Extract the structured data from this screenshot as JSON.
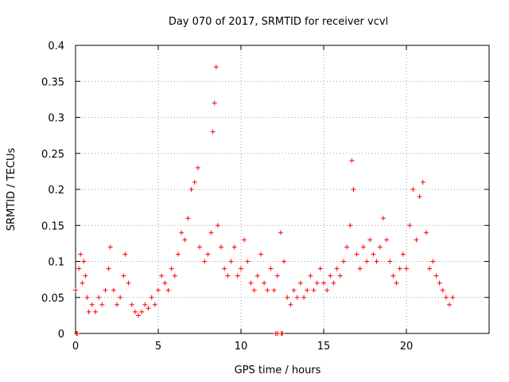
{
  "chart_data": {
    "type": "scatter",
    "title": "Day 070 of 2017, SRMTID for receiver vcvl",
    "xlabel": "GPS time / hours",
    "ylabel": "SRMTID / TECUs",
    "xlim": [
      0,
      25
    ],
    "ylim": [
      0,
      0.4
    ],
    "xticks": [
      "0",
      "5",
      "10",
      "15",
      "20"
    ],
    "yticks": [
      "0",
      "0.05",
      "0.1",
      "0.15",
      "0.2",
      "0.25",
      "0.3",
      "0.35",
      "0.4"
    ],
    "grid": true,
    "marker": "+",
    "color": "#ff0000",
    "series": [
      {
        "name": "SRMTID",
        "points": [
          [
            0.05,
            0.0
          ],
          [
            0.1,
            0.0
          ],
          [
            12.1,
            0.0
          ],
          [
            12.2,
            0.0
          ],
          [
            12.45,
            0.0
          ],
          [
            12.5,
            0.0
          ],
          [
            0.0,
            0.06
          ],
          [
            0.2,
            0.09
          ],
          [
            0.3,
            0.11
          ],
          [
            0.4,
            0.07
          ],
          [
            0.5,
            0.1
          ],
          [
            0.6,
            0.08
          ],
          [
            0.7,
            0.05
          ],
          [
            0.8,
            0.03
          ],
          [
            1.0,
            0.04
          ],
          [
            1.2,
            0.03
          ],
          [
            1.4,
            0.05
          ],
          [
            1.6,
            0.04
          ],
          [
            1.8,
            0.06
          ],
          [
            2.0,
            0.09
          ],
          [
            2.1,
            0.12
          ],
          [
            2.3,
            0.06
          ],
          [
            2.5,
            0.04
          ],
          [
            2.7,
            0.05
          ],
          [
            2.9,
            0.08
          ],
          [
            3.0,
            0.11
          ],
          [
            3.2,
            0.07
          ],
          [
            3.4,
            0.04
          ],
          [
            3.6,
            0.03
          ],
          [
            3.8,
            0.025
          ],
          [
            4.0,
            0.03
          ],
          [
            4.2,
            0.04
          ],
          [
            4.4,
            0.035
          ],
          [
            4.6,
            0.05
          ],
          [
            4.8,
            0.04
          ],
          [
            5.0,
            0.06
          ],
          [
            5.2,
            0.08
          ],
          [
            5.4,
            0.07
          ],
          [
            5.6,
            0.06
          ],
          [
            5.8,
            0.09
          ],
          [
            6.0,
            0.08
          ],
          [
            6.2,
            0.11
          ],
          [
            6.4,
            0.14
          ],
          [
            6.6,
            0.13
          ],
          [
            6.8,
            0.16
          ],
          [
            7.0,
            0.2
          ],
          [
            7.2,
            0.21
          ],
          [
            7.4,
            0.23
          ],
          [
            7.5,
            0.12
          ],
          [
            7.8,
            0.1
          ],
          [
            8.0,
            0.11
          ],
          [
            8.2,
            0.14
          ],
          [
            8.3,
            0.28
          ],
          [
            8.4,
            0.32
          ],
          [
            8.5,
            0.37
          ],
          [
            8.6,
            0.15
          ],
          [
            8.8,
            0.12
          ],
          [
            9.0,
            0.09
          ],
          [
            9.2,
            0.08
          ],
          [
            9.4,
            0.1
          ],
          [
            9.6,
            0.12
          ],
          [
            9.8,
            0.08
          ],
          [
            10.0,
            0.09
          ],
          [
            10.2,
            0.13
          ],
          [
            10.4,
            0.1
          ],
          [
            10.6,
            0.07
          ],
          [
            10.8,
            0.06
          ],
          [
            11.0,
            0.08
          ],
          [
            11.2,
            0.11
          ],
          [
            11.4,
            0.07
          ],
          [
            11.6,
            0.06
          ],
          [
            11.8,
            0.09
          ],
          [
            12.0,
            0.06
          ],
          [
            12.2,
            0.08
          ],
          [
            12.4,
            0.14
          ],
          [
            12.6,
            0.1
          ],
          [
            12.8,
            0.05
          ],
          [
            13.0,
            0.04
          ],
          [
            13.2,
            0.06
          ],
          [
            13.4,
            0.05
          ],
          [
            13.6,
            0.07
          ],
          [
            13.8,
            0.05
          ],
          [
            14.0,
            0.06
          ],
          [
            14.2,
            0.08
          ],
          [
            14.4,
            0.06
          ],
          [
            14.6,
            0.07
          ],
          [
            14.8,
            0.09
          ],
          [
            15.0,
            0.07
          ],
          [
            15.2,
            0.06
          ],
          [
            15.4,
            0.08
          ],
          [
            15.6,
            0.07
          ],
          [
            15.8,
            0.09
          ],
          [
            16.0,
            0.08
          ],
          [
            16.2,
            0.1
          ],
          [
            16.4,
            0.12
          ],
          [
            16.6,
            0.15
          ],
          [
            16.7,
            0.24
          ],
          [
            16.8,
            0.2
          ],
          [
            17.0,
            0.11
          ],
          [
            17.2,
            0.09
          ],
          [
            17.4,
            0.12
          ],
          [
            17.6,
            0.1
          ],
          [
            17.8,
            0.13
          ],
          [
            18.0,
            0.11
          ],
          [
            18.2,
            0.1
          ],
          [
            18.4,
            0.12
          ],
          [
            18.6,
            0.16
          ],
          [
            18.8,
            0.13
          ],
          [
            19.0,
            0.1
          ],
          [
            19.2,
            0.08
          ],
          [
            19.4,
            0.07
          ],
          [
            19.6,
            0.09
          ],
          [
            19.8,
            0.11
          ],
          [
            20.0,
            0.09
          ],
          [
            20.2,
            0.15
          ],
          [
            20.4,
            0.2
          ],
          [
            20.6,
            0.13
          ],
          [
            20.8,
            0.19
          ],
          [
            21.0,
            0.21
          ],
          [
            21.2,
            0.14
          ],
          [
            21.4,
            0.09
          ],
          [
            21.6,
            0.1
          ],
          [
            21.8,
            0.08
          ],
          [
            22.0,
            0.07
          ],
          [
            22.2,
            0.06
          ],
          [
            22.4,
            0.05
          ],
          [
            22.6,
            0.04
          ],
          [
            22.8,
            0.05
          ]
        ]
      }
    ]
  }
}
